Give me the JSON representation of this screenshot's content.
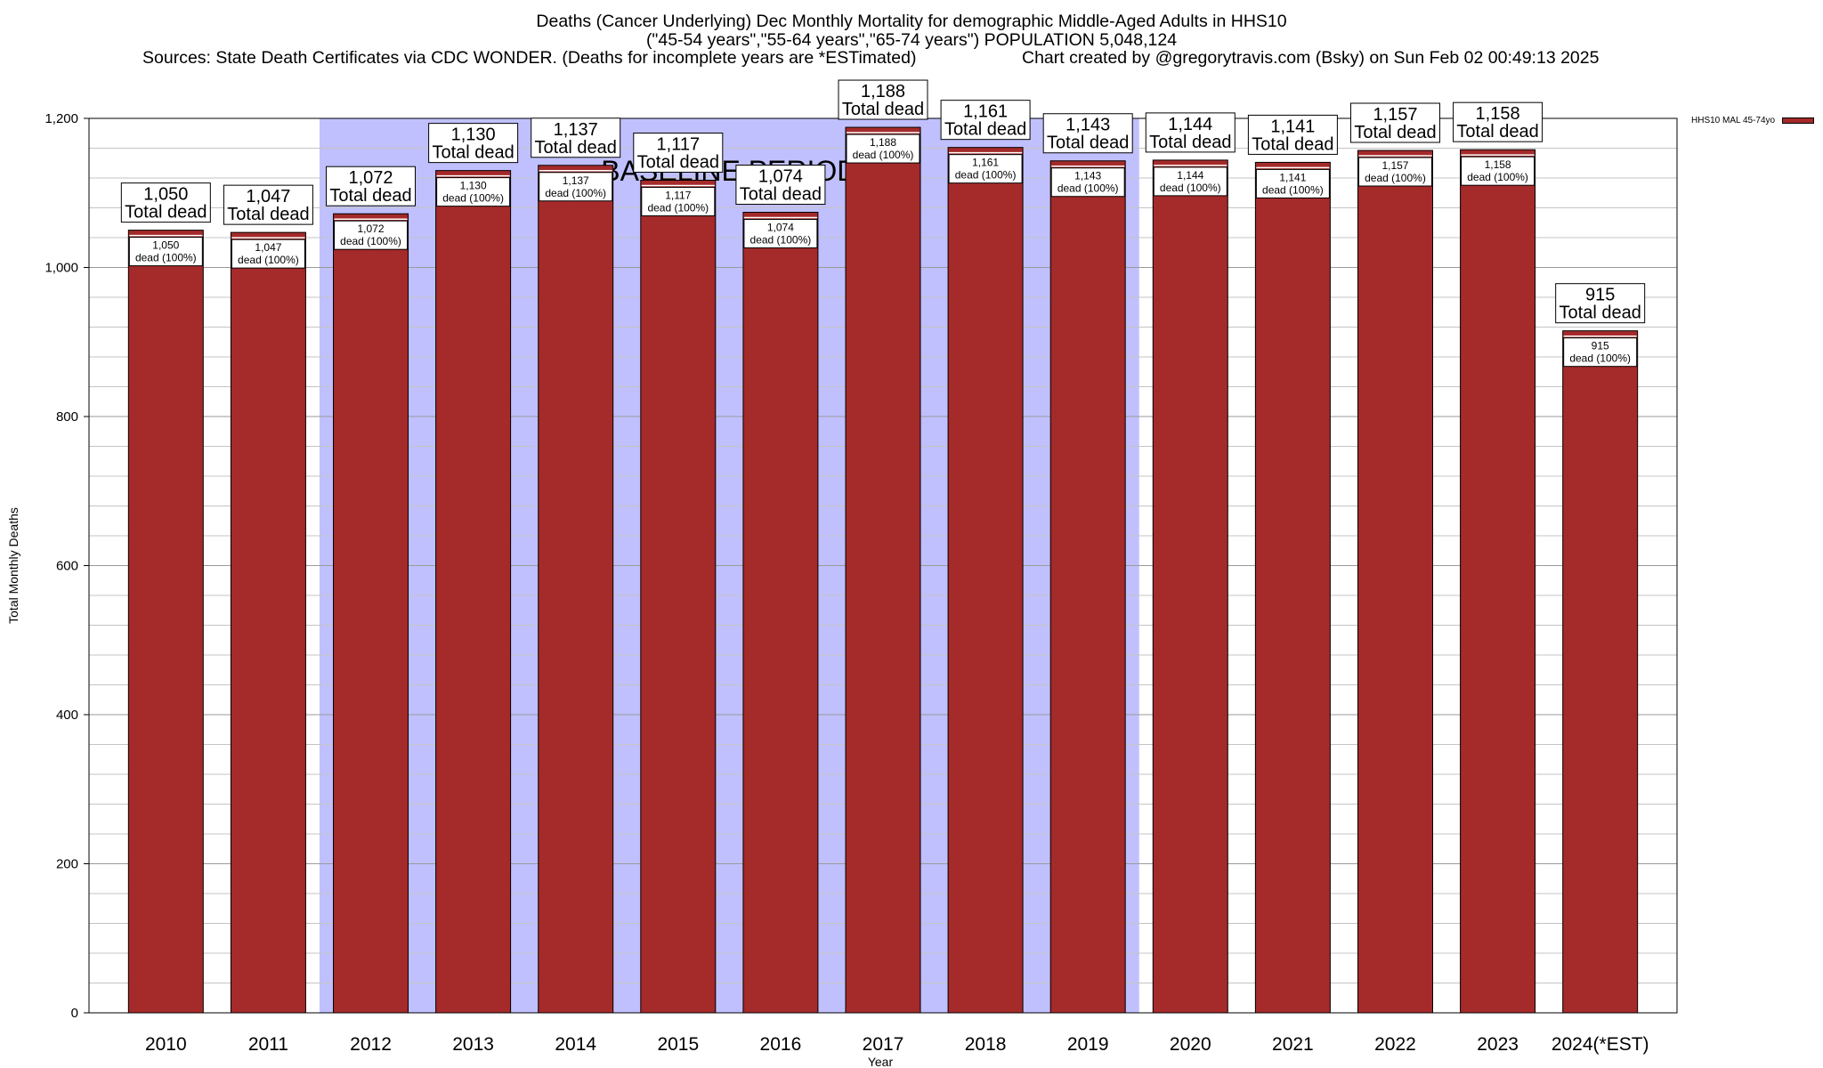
{
  "chart_data": {
    "type": "bar",
    "title_lines": [
      "Deaths (Cancer Underlying) Dec Monthly Mortality for demographic Middle-Aged Adults in HHS10",
      "(\"45-54 years\",\"55-64 years\",\"65-74 years\") POPULATION 5,048,124"
    ],
    "source_left": "Sources: State Death Certificates via CDC WONDER. (Deaths for incomplete years are *ESTimated)",
    "source_right": "Chart created by @gregorytravis.com (Bsky) on Sun Feb 02 00:49:13 2025",
    "xlabel": "Year",
    "ylabel": "Total Monthly Deaths",
    "ylim": [
      0,
      1200
    ],
    "yticks": [
      0,
      200,
      400,
      600,
      800,
      1000,
      1200
    ],
    "ytick_labels": [
      "0",
      "200",
      "400",
      "600",
      "800",
      "1,000",
      "1,200"
    ],
    "grid": true,
    "categories": [
      "2010",
      "2011",
      "2012",
      "2013",
      "2014",
      "2015",
      "2016",
      "2017",
      "2018",
      "2019",
      "2020",
      "2021",
      "2022",
      "2023",
      "2024(*EST)"
    ],
    "series": [
      {
        "name": "HHS10 MAL 45-74yo",
        "color": "#a52a2a",
        "values": [
          1050,
          1047,
          1072,
          1130,
          1137,
          1117,
          1074,
          1188,
          1161,
          1143,
          1144,
          1141,
          1157,
          1158,
          915
        ]
      }
    ],
    "value_labels": [
      "1,050",
      "1,047",
      "1,072",
      "1,130",
      "1,137",
      "1,117",
      "1,074",
      "1,188",
      "1,161",
      "1,143",
      "1,144",
      "1,141",
      "1,157",
      "1,158",
      "915"
    ],
    "total_label": "Total dead",
    "inner_label_suffix": "dead (100%)",
    "baseline": {
      "label": "BASELINE PERIOD",
      "start": "2012",
      "end": "2019",
      "color": "#c0c0ff"
    },
    "legend_position": "top-right"
  }
}
